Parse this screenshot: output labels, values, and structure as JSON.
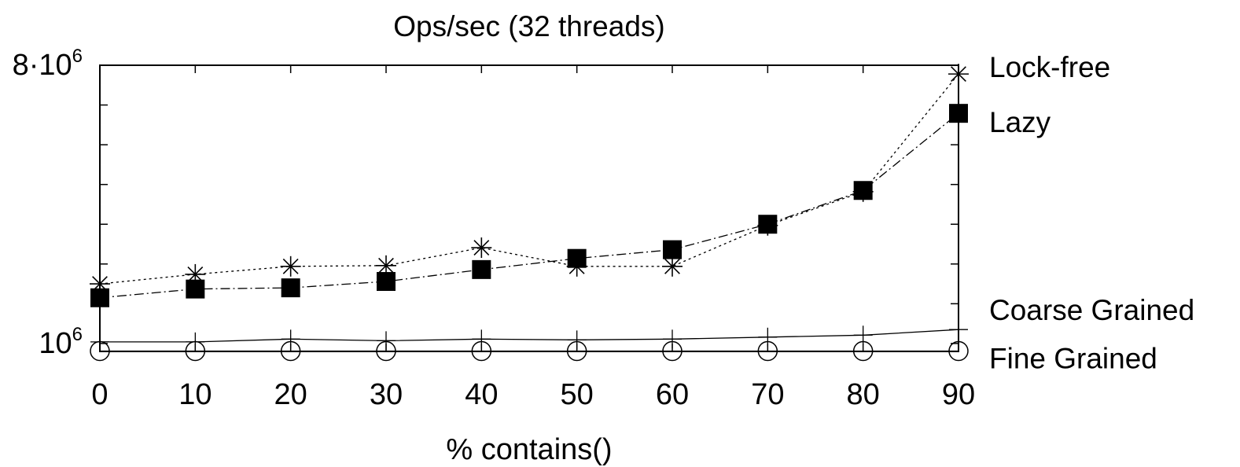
{
  "chart_data": {
    "type": "line",
    "title": "Ops/sec (32 threads)",
    "xlabel": "% contains()",
    "ylabel": "",
    "x": [
      0,
      10,
      20,
      30,
      40,
      50,
      60,
      70,
      80,
      90
    ],
    "xlim": [
      0,
      90
    ],
    "ylim": [
      800000,
      8000000
    ],
    "y_tick_labels": [
      {
        "value": 1000000,
        "base": "10",
        "exp": "6"
      },
      {
        "value": 8000000,
        "base": "8·10",
        "exp": "6"
      }
    ],
    "grid": false,
    "legend_position": "right-end-labels",
    "series": [
      {
        "name": "Lock-free",
        "marker": "star",
        "line_style": "dotted",
        "values": [
          2500000,
          2740000,
          2940000,
          2960000,
          3410000,
          2940000,
          2940000,
          3970000,
          4820000,
          7780000
        ]
      },
      {
        "name": "Lazy",
        "marker": "filled-square",
        "line_style": "dash-dot",
        "values": [
          2150000,
          2370000,
          2400000,
          2560000,
          2860000,
          3140000,
          3360000,
          4000000,
          4850000,
          6790000
        ]
      },
      {
        "name": "Coarse Grained",
        "marker": "plus",
        "line_style": "solid",
        "values": [
          1040000,
          1040000,
          1110000,
          1070000,
          1110000,
          1090000,
          1110000,
          1160000,
          1210000,
          1350000
        ]
      },
      {
        "name": "Fine Grained",
        "marker": "circle",
        "line_style": "solid",
        "values": [
          810000,
          810000,
          810000,
          810000,
          810000,
          810000,
          810000,
          810000,
          810000,
          810000
        ]
      }
    ]
  }
}
